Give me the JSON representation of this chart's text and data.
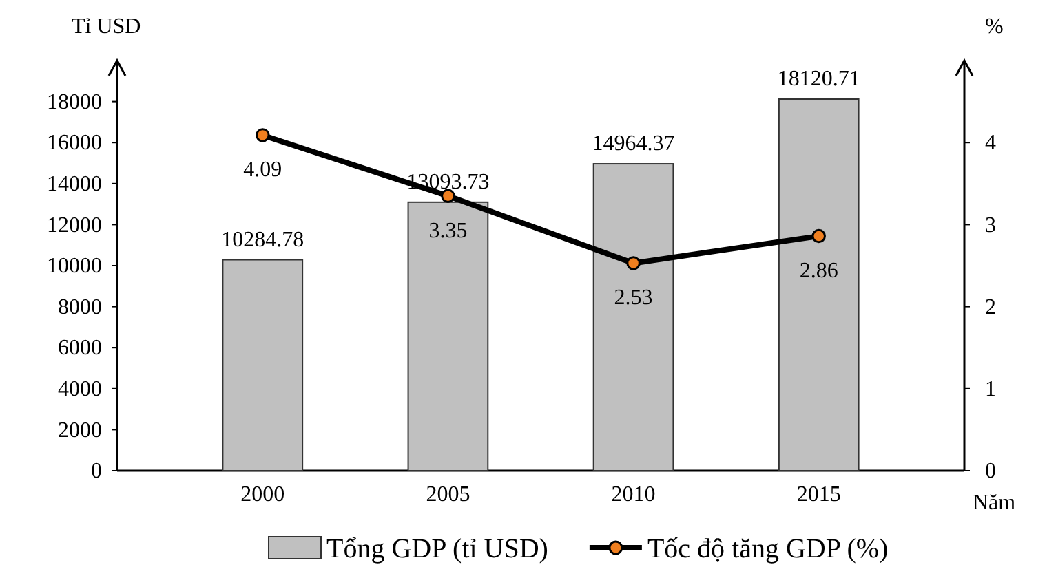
{
  "chart_data": {
    "type": "bar",
    "categories": [
      "2000",
      "2005",
      "2010",
      "2015"
    ],
    "series": [
      {
        "name": "Tổng GDP (tỉ USD)",
        "color": "#c0c0c0",
        "values": [
          10284.78,
          13093.73,
          14964.37,
          18120.71
        ]
      },
      {
        "name": "Tốc độ tăng GDP (%)",
        "type": "line",
        "axis": "y2",
        "color": "#000000",
        "values": [
          4.09,
          3.35,
          2.53,
          2.86
        ]
      }
    ],
    "xlabel": "Năm",
    "ylabel": "Tỉ USD",
    "y2label": "%",
    "ylim": [
      0,
      20000
    ],
    "yticks": [
      0,
      2000,
      4000,
      6000,
      8000,
      10000,
      12000,
      14000,
      16000,
      18000
    ],
    "y2lim": [
      0,
      5
    ],
    "y2ticks": [
      0,
      1,
      2,
      3,
      4
    ],
    "data_labels": true,
    "legend": "bottom",
    "grid": false,
    "marker": "circle",
    "line_style": "solid"
  }
}
